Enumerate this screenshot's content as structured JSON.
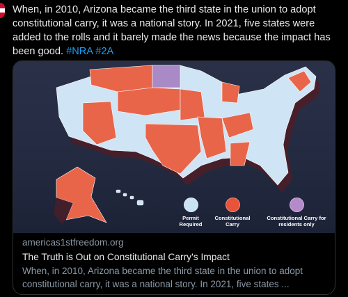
{
  "tweet": {
    "text": "When, in 2010, Arizona became the third state in the union to adopt constitutional carry, it was a national story. In 2021, five states were added to the rolls and it barely made the news because the impact has been good.",
    "hashtags": [
      "#NRA",
      "#2A"
    ]
  },
  "card": {
    "domain": "americas1stfreedom.org",
    "title": "The Truth is Out on Constitutional Carry's Impact",
    "description": "When, in 2010, Arizona became the third state in the union to adopt\nconstitutional carry, it was a national story. In 2021, five states ...",
    "legend": [
      {
        "label": "Permit\nRequired",
        "color": "#c9e3f5"
      },
      {
        "label": "Constitutional\nCarry",
        "color": "#e8533a"
      },
      {
        "label": "Constitutional Carry for\nresidents only",
        "color": "#b48acb"
      }
    ],
    "map_colors": {
      "permit": "#cfe4f4",
      "constitutional": "#e8654a",
      "residents_only": "#a98ac6",
      "side": "#5a2630",
      "background": "#262c44"
    }
  }
}
